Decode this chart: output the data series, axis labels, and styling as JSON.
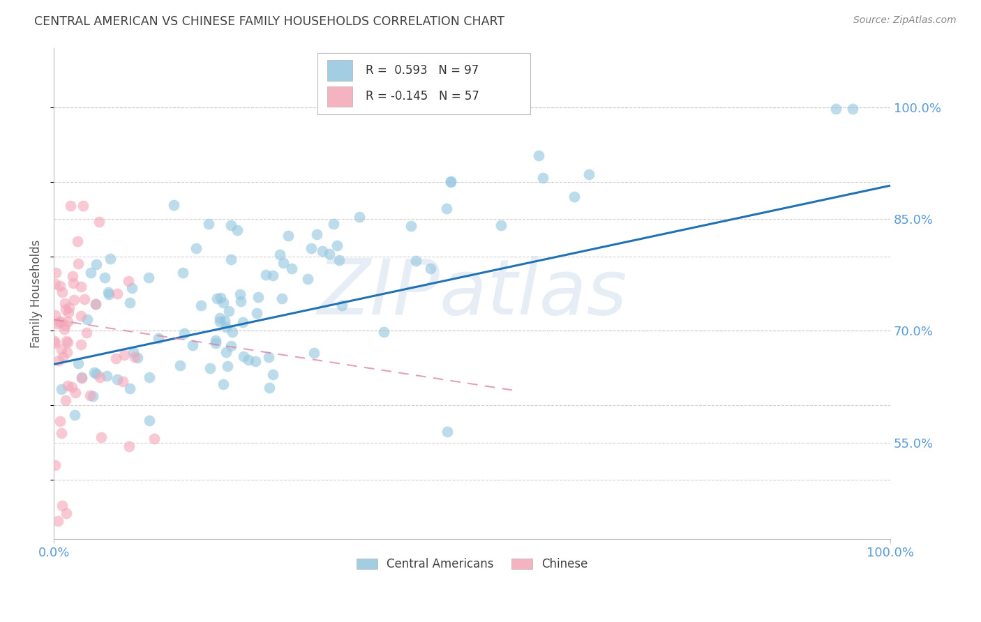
{
  "title": "CENTRAL AMERICAN VS CHINESE FAMILY HOUSEHOLDS CORRELATION CHART",
  "source": "Source: ZipAtlas.com",
  "ylabel": "Family Households",
  "x_tick_labels": [
    "0.0%",
    "100.0%"
  ],
  "y_tick_labels_right": [
    "55.0%",
    "70.0%",
    "85.0%",
    "100.0%"
  ],
  "y_tick_positions": [
    0.55,
    0.7,
    0.85,
    1.0
  ],
  "x_lim": [
    0.0,
    1.0
  ],
  "y_lim": [
    0.42,
    1.08
  ],
  "watermark": "ZIPatlas",
  "legend_blue_r": "R =  0.593",
  "legend_blue_n": "N = 97",
  "legend_pink_r": "R = -0.145",
  "legend_pink_n": "N = 57",
  "blue_color": "#92c5de",
  "pink_color": "#f4a6b8",
  "blue_line_color": "#2171b5",
  "pink_line_color": "#de7fa0",
  "blue_scatter_alpha": 0.6,
  "pink_scatter_alpha": 0.6,
  "scatter_size": 130,
  "grid_color": "#cccccc",
  "background_color": "#ffffff",
  "title_color": "#404040",
  "axis_label_color": "#555555",
  "tick_label_color": "#5b9bd5",
  "source_color": "#888888",
  "legend_label_blue": "Central Americans",
  "legend_label_pink": "Chinese",
  "blue_line_x0": 0.0,
  "blue_line_x1": 1.0,
  "blue_line_y0": 0.655,
  "blue_line_y1": 0.895,
  "pink_line_x0": 0.0,
  "pink_line_x1": 0.55,
  "pink_line_y0": 0.715,
  "pink_line_y1": 0.62
}
